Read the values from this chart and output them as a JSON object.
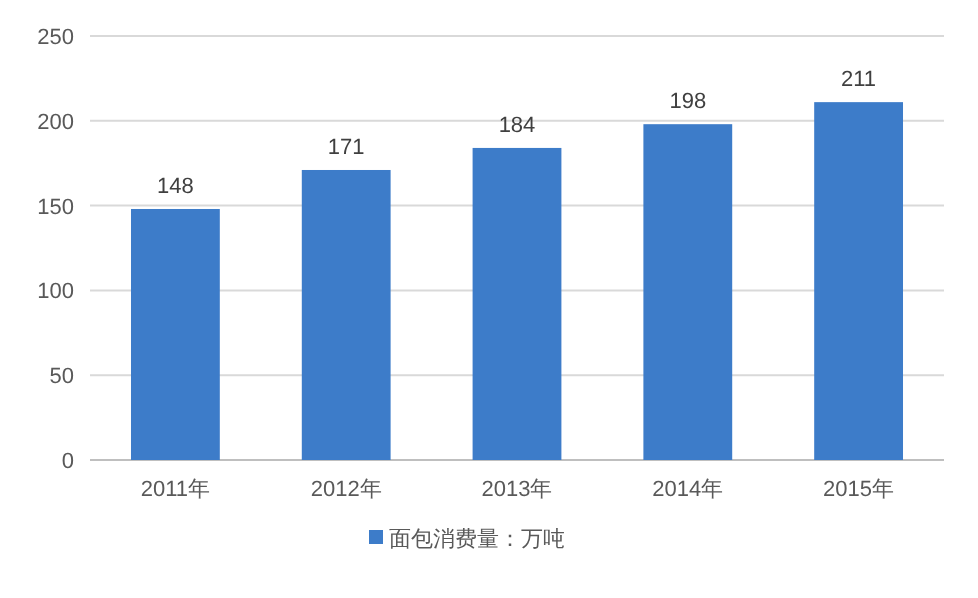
{
  "chart_data": {
    "type": "bar",
    "categories": [
      "2011年",
      "2012年",
      "2013年",
      "2014年",
      "2015年"
    ],
    "series": [
      {
        "name": "面包消费量：万吨",
        "color": "#3d7cc9",
        "values": [
          148,
          171,
          184,
          198,
          211
        ]
      }
    ],
    "ylim": [
      0,
      250
    ],
    "yticks": [
      0,
      50,
      100,
      150,
      200,
      250
    ],
    "grid": "y",
    "legend": "bottom",
    "data_labels": true
  }
}
